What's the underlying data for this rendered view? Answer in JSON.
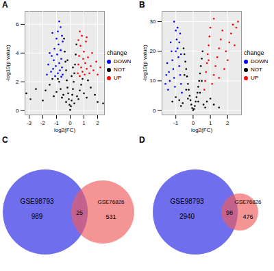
{
  "chart_data": [
    {
      "type": "scatter",
      "title": "A",
      "x_label": "log2(FC)",
      "y_label": "-log10(p value)",
      "xlim": [
        -3.3,
        2.5
      ],
      "xticks": [
        -3,
        -2,
        -1,
        0,
        1,
        2
      ],
      "ylim": [
        -0.3,
        6.9
      ],
      "yticks": [
        0,
        2,
        4,
        6
      ],
      "grid": true,
      "legend": "right",
      "legend_title": "change",
      "marker": "circle",
      "series": [
        {
          "name": "DOWN",
          "color": "blue",
          "x": [
            -0.55,
            -0.6,
            -0.65,
            -0.7,
            -0.75,
            -0.8,
            -0.85,
            -0.9,
            -0.95,
            -1.0,
            -1.05,
            -1.1,
            -1.15,
            -1.2,
            -1.25,
            -1.3,
            -1.35,
            -1.4,
            -1.5,
            -1.6,
            -0.6,
            -0.7,
            -0.8,
            -0.55,
            -0.65,
            -1.7,
            -0.9
          ],
          "values": [
            2.5,
            3.0,
            3.6,
            4.2,
            2.8,
            3.3,
            4.6,
            2.6,
            3.9,
            5.0,
            3.1,
            2.4,
            4.3,
            3.5,
            2.9,
            5.4,
            3.8,
            2.7,
            4.0,
            3.2,
            5.2,
            5.8,
            6.2,
            4.8,
            2.35,
            2.5,
            5.5
          ]
        },
        {
          "name": "NOT",
          "color": "black",
          "x": [
            0,
            0.05,
            -0.05,
            0.1,
            -0.1,
            0.15,
            -0.15,
            0.2,
            -0.2,
            0.25,
            -0.25,
            0.3,
            -0.3,
            0.35,
            -0.35,
            0.4,
            -0.4,
            0.45,
            -0.45,
            0.3,
            -0.3,
            0.5,
            -0.5,
            0.6,
            -0.6,
            0.7,
            -0.7,
            0.8,
            -0.8,
            1.0,
            -1.0,
            1.2,
            -1.2,
            1.5,
            -1.5,
            1.8,
            -1.8,
            2.0,
            -2.0,
            2.4,
            -2.5,
            -2.9,
            -3.2,
            0.9,
            -0.9,
            1.3,
            -1.3,
            0.2,
            -0.2,
            0.1
          ],
          "values": [
            0.05,
            0.3,
            0.4,
            0.7,
            0.8,
            1.1,
            1.2,
            1.5,
            1.6,
            2.0,
            2.1,
            2.6,
            2.8,
            3.2,
            3.4,
            3.9,
            4.1,
            4.6,
            5.0,
            0.5,
            0.6,
            1.0,
            1.1,
            0.8,
            0.9,
            1.4,
            1.5,
            1.8,
            2.0,
            1.2,
            1.3,
            0.9,
            1.0,
            1.6,
            1.8,
            1.1,
            1.4,
            0.6,
            0.7,
            0.5,
            1.5,
            0.8,
            1.2,
            2.2,
            2.2,
            2.1,
            2.2,
            3.0,
            3.5,
            2.4
          ]
        },
        {
          "name": "UP",
          "color": "red",
          "x": [
            0.55,
            0.6,
            0.65,
            0.7,
            0.75,
            0.8,
            0.85,
            0.9,
            0.95,
            1.0,
            1.05,
            1.1,
            1.15,
            1.2,
            1.3,
            1.4,
            1.5,
            1.6,
            1.7,
            1.9,
            2.0,
            0.6,
            0.7,
            1.2,
            2.2
          ],
          "values": [
            2.6,
            3.2,
            3.8,
            2.4,
            4.5,
            3.0,
            5.2,
            2.7,
            3.6,
            4.1,
            2.5,
            3.3,
            4.8,
            2.9,
            3.7,
            2.6,
            3.1,
            4.0,
            2.8,
            3.4,
            2.5,
            4.9,
            5.5,
            5.1,
            3.0
          ]
        }
      ]
    },
    {
      "type": "scatter",
      "title": "B",
      "x_label": "log2(FC)",
      "y_label": "-log10(p value)",
      "xlim": [
        -1.8,
        2.8
      ],
      "xticks": [
        -1,
        0,
        1,
        2
      ],
      "ylim": [
        -1.5,
        33.5
      ],
      "yticks": [
        0,
        10,
        20,
        30
      ],
      "grid": true,
      "legend": "right",
      "legend_title": "change",
      "marker": "circle",
      "series": [
        {
          "name": "DOWN",
          "color": "blue",
          "x": [
            -0.65,
            -0.7,
            -0.75,
            -0.8,
            -0.85,
            -0.9,
            -0.95,
            -1.0,
            -1.05,
            -1.1,
            -1.15,
            -1.2,
            -1.25,
            -1.3,
            -1.35,
            -1.4,
            -1.45,
            -1.5,
            -1.55,
            -0.7,
            -0.8,
            -0.9,
            -1.1,
            -0.75,
            -1.0,
            -1.6
          ],
          "values": [
            6,
            9,
            12,
            15,
            18,
            21,
            24,
            27,
            8,
            11,
            14,
            17,
            20,
            23,
            10,
            13,
            7,
            16,
            12,
            19,
            23,
            28,
            30,
            26,
            20,
            9
          ]
        },
        {
          "name": "NOT",
          "color": "black",
          "x": [
            0,
            0.05,
            -0.05,
            0.1,
            -0.1,
            0.15,
            -0.15,
            0.2,
            -0.2,
            0.25,
            -0.25,
            0.3,
            -0.3,
            0.35,
            -0.35,
            0.4,
            -0.4,
            0.45,
            -0.45,
            0.5,
            -0.5,
            0.55,
            -0.55,
            0.3,
            -0.3,
            0.6,
            -0.6,
            0.8,
            -0.8,
            1.0,
            -1.0,
            1.2,
            -1.2,
            0.5,
            -0.5,
            0.4,
            -0.4,
            1.5,
            0.7,
            -0.7
          ],
          "values": [
            0.1,
            0.5,
            0.8,
            1.5,
            2,
            3,
            3.5,
            4.5,
            5,
            6,
            7,
            8,
            9,
            10,
            11.5,
            12.5,
            14,
            15,
            16.5,
            17.5,
            19,
            20,
            21,
            3,
            4,
            2,
            2.5,
            3,
            3.5,
            4,
            4.5,
            2,
            3,
            10,
            12,
            6,
            7,
            1,
            1,
            1.5
          ]
        },
        {
          "name": "UP",
          "color": "red",
          "x": [
            0.65,
            0.7,
            0.75,
            0.8,
            0.85,
            0.9,
            0.95,
            1.0,
            1.1,
            1.2,
            1.3,
            1.4,
            1.5,
            1.6,
            1.7,
            1.8,
            1.9,
            2.0,
            2.1,
            2.2,
            2.3,
            2.4,
            2.5,
            2.6,
            1.2,
            0.9,
            1.5
          ],
          "values": [
            7,
            10,
            13,
            16,
            19,
            22,
            25,
            28,
            9,
            12,
            15,
            18,
            21,
            24,
            27,
            14,
            20,
            17,
            23,
            26,
            29,
            22,
            28,
            30,
            31,
            17,
            11
          ]
        }
      ]
    },
    {
      "type": "venn",
      "title": "C",
      "sets": [
        {
          "name": "GSE98793",
          "color": "#4b4bea",
          "value": 989
        },
        {
          "name": "GSE76826",
          "color": "#f05a5a",
          "value": 531
        }
      ],
      "overlap": 25
    },
    {
      "type": "venn",
      "title": "D",
      "sets": [
        {
          "name": "GSE98793",
          "color": "#4b4bea",
          "value": 2940
        },
        {
          "name": "GSE76826",
          "color": "#f05a5a",
          "value": 476
        }
      ],
      "overlap": 98
    }
  ]
}
